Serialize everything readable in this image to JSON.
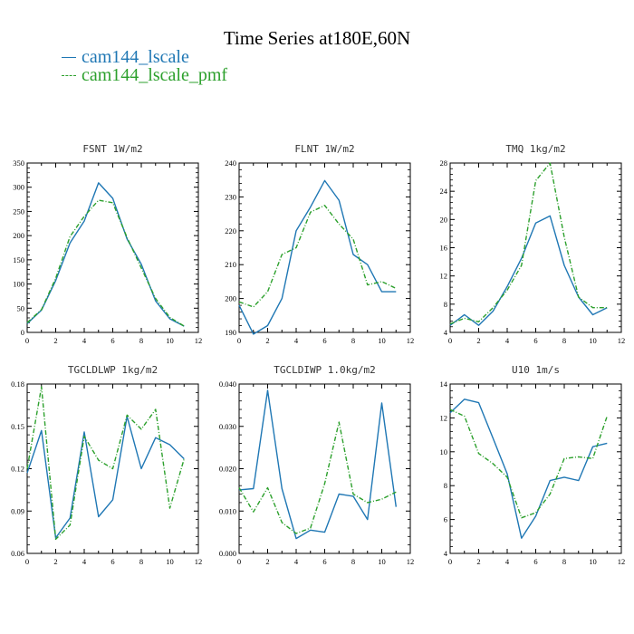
{
  "figure": {
    "title": "Time Series at180E,60N"
  },
  "colors": {
    "series_1": "#1f77b4",
    "series_2": "#2ca02c"
  },
  "legend": [
    {
      "label": "cam144_lscale",
      "color": "#1f77b4"
    },
    {
      "label": "cam144_lscale_pmf",
      "color": "#2ca02c"
    }
  ],
  "chart_data": [
    {
      "type": "line",
      "title": "FSNT   1W/m2",
      "x": [
        0,
        1,
        2,
        3,
        4,
        5,
        6,
        7,
        8,
        9,
        10,
        11
      ],
      "xlim": [
        0,
        12
      ],
      "xticks": [
        0,
        2,
        4,
        6,
        8,
        10,
        12
      ],
      "xtick_labels": [
        "0",
        "2",
        "4",
        "6",
        "8",
        "10",
        "12"
      ],
      "ylim": [
        0,
        350
      ],
      "yticks": [
        0,
        50,
        100,
        150,
        200,
        250,
        300,
        350
      ],
      "ytick_labels": [
        "0",
        "50",
        "100",
        "150",
        "200",
        "250",
        "300",
        "350"
      ],
      "series": [
        {
          "name": "cam144_lscale",
          "values": [
            18,
            46,
            107,
            185,
            230,
            309,
            277,
            193,
            141,
            65,
            28,
            13
          ]
        },
        {
          "name": "cam144_lscale_pmf",
          "values": [
            20,
            47,
            112,
            198,
            240,
            273,
            268,
            196,
            133,
            70,
            31,
            13
          ]
        }
      ]
    },
    {
      "type": "line",
      "title": "FLNT   1W/m2",
      "x": [
        0,
        1,
        2,
        3,
        4,
        5,
        6,
        7,
        8,
        9,
        10,
        11
      ],
      "xlim": [
        0,
        12
      ],
      "xticks": [
        0,
        2,
        4,
        6,
        8,
        10,
        12
      ],
      "xtick_labels": [
        "0",
        "2",
        "4",
        "6",
        "8",
        "10",
        "12"
      ],
      "ylim": [
        190,
        240
      ],
      "yticks": [
        190,
        200,
        210,
        220,
        230,
        240
      ],
      "ytick_labels": [
        "190",
        "200",
        "210",
        "220",
        "230",
        "240"
      ],
      "series": [
        {
          "name": "cam144_lscale",
          "values": [
            198,
            189.5,
            192,
            200,
            220,
            227,
            234.8,
            229,
            213,
            210,
            202,
            202
          ]
        },
        {
          "name": "cam144_lscale_pmf",
          "values": [
            199,
            197.5,
            202,
            213,
            215,
            225.5,
            227.5,
            222,
            217.5,
            204,
            205,
            203
          ]
        }
      ]
    },
    {
      "type": "line",
      "title": "TMQ   1kg/m2",
      "x": [
        0,
        1,
        2,
        3,
        4,
        5,
        6,
        7,
        8,
        9,
        10,
        11
      ],
      "xlim": [
        0,
        12
      ],
      "xticks": [
        0,
        2,
        4,
        6,
        8,
        10,
        12
      ],
      "xtick_labels": [
        "0",
        "2",
        "4",
        "6",
        "8",
        "10",
        "12"
      ],
      "ylim": [
        4,
        28
      ],
      "yticks": [
        4,
        8,
        12,
        16,
        20,
        24,
        28
      ],
      "ytick_labels": [
        "4",
        "8",
        "12",
        "16",
        "20",
        "24",
        "28"
      ],
      "series": [
        {
          "name": "cam144_lscale",
          "values": [
            5,
            6.5,
            5,
            7,
            10.5,
            14.5,
            19.5,
            20.5,
            13.5,
            9,
            6.5,
            7.5
          ]
        },
        {
          "name": "cam144_lscale_pmf",
          "values": [
            5.2,
            6,
            5.5,
            7.5,
            10,
            13.5,
            25.5,
            28,
            17.5,
            9,
            7.5,
            7.5
          ]
        }
      ]
    },
    {
      "type": "line",
      "title": "TGCLDLWP   1kg/m2",
      "x": [
        0,
        1,
        2,
        3,
        4,
        5,
        6,
        7,
        8,
        9,
        10,
        11
      ],
      "xlim": [
        0,
        12
      ],
      "xticks": [
        0,
        2,
        4,
        6,
        8,
        10,
        12
      ],
      "xtick_labels": [
        "0",
        "2",
        "4",
        "6",
        "8",
        "10",
        "12"
      ],
      "ylim": [
        0.06,
        0.18
      ],
      "yticks": [
        0.06,
        0.09,
        0.12,
        0.15,
        0.18
      ],
      "ytick_labels": [
        "0.06",
        "0.09",
        "0.12",
        "0.15",
        "0.18"
      ],
      "series": [
        {
          "name": "cam144_lscale",
          "values": [
            0.117,
            0.147,
            0.071,
            0.085,
            0.146,
            0.086,
            0.098,
            0.157,
            0.12,
            0.142,
            0.137,
            0.127
          ]
        },
        {
          "name": "cam144_lscale_pmf",
          "values": [
            0.12,
            0.178,
            0.07,
            0.08,
            0.143,
            0.126,
            0.12,
            0.158,
            0.148,
            0.162,
            0.092,
            0.127
          ]
        }
      ]
    },
    {
      "type": "line",
      "title": "TGCLDIWP   1.0kg/m2",
      "x": [
        0,
        1,
        2,
        3,
        4,
        5,
        6,
        7,
        8,
        9,
        10,
        11
      ],
      "xlim": [
        0,
        12
      ],
      "xticks": [
        0,
        2,
        4,
        6,
        8,
        10,
        12
      ],
      "xtick_labels": [
        "0",
        "2",
        "4",
        "6",
        "8",
        "10",
        "12"
      ],
      "ylim": [
        0,
        0.04
      ],
      "yticks": [
        0,
        0.01,
        0.02,
        0.03,
        0.04
      ],
      "ytick_labels": [
        "0.000",
        "0.010",
        "0.020",
        "0.030",
        "0.040"
      ],
      "series": [
        {
          "name": "cam144_lscale",
          "values": [
            0.015,
            0.0153,
            0.0385,
            0.0153,
            0.0035,
            0.0055,
            0.005,
            0.014,
            0.0135,
            0.008,
            0.0355,
            0.011
          ]
        },
        {
          "name": "cam144_lscale_pmf",
          "values": [
            0.0155,
            0.0098,
            0.0155,
            0.0073,
            0.0047,
            0.006,
            0.0165,
            0.031,
            0.014,
            0.012,
            0.0128,
            0.0145
          ]
        }
      ]
    },
    {
      "type": "line",
      "title": "U10   1m/s",
      "x": [
        0,
        1,
        2,
        3,
        4,
        5,
        6,
        7,
        8,
        9,
        10,
        11
      ],
      "xlim": [
        0,
        12
      ],
      "xticks": [
        0,
        2,
        4,
        6,
        8,
        10,
        12
      ],
      "xtick_labels": [
        "0",
        "2",
        "4",
        "6",
        "8",
        "10",
        "12"
      ],
      "ylim": [
        4,
        14
      ],
      "yticks": [
        4,
        6,
        8,
        10,
        12,
        14
      ],
      "ytick_labels": [
        "4",
        "6",
        "8",
        "10",
        "12",
        "14"
      ],
      "series": [
        {
          "name": "cam144_lscale",
          "values": [
            12.3,
            13.1,
            12.9,
            10.8,
            8.7,
            4.9,
            6.2,
            8.3,
            8.5,
            8.3,
            10.3,
            10.5
          ]
        },
        {
          "name": "cam144_lscale_pmf",
          "values": [
            12.5,
            12.1,
            9.9,
            9.3,
            8.5,
            6.1,
            6.4,
            7.5,
            9.6,
            9.7,
            9.6,
            12.1
          ]
        }
      ]
    }
  ]
}
